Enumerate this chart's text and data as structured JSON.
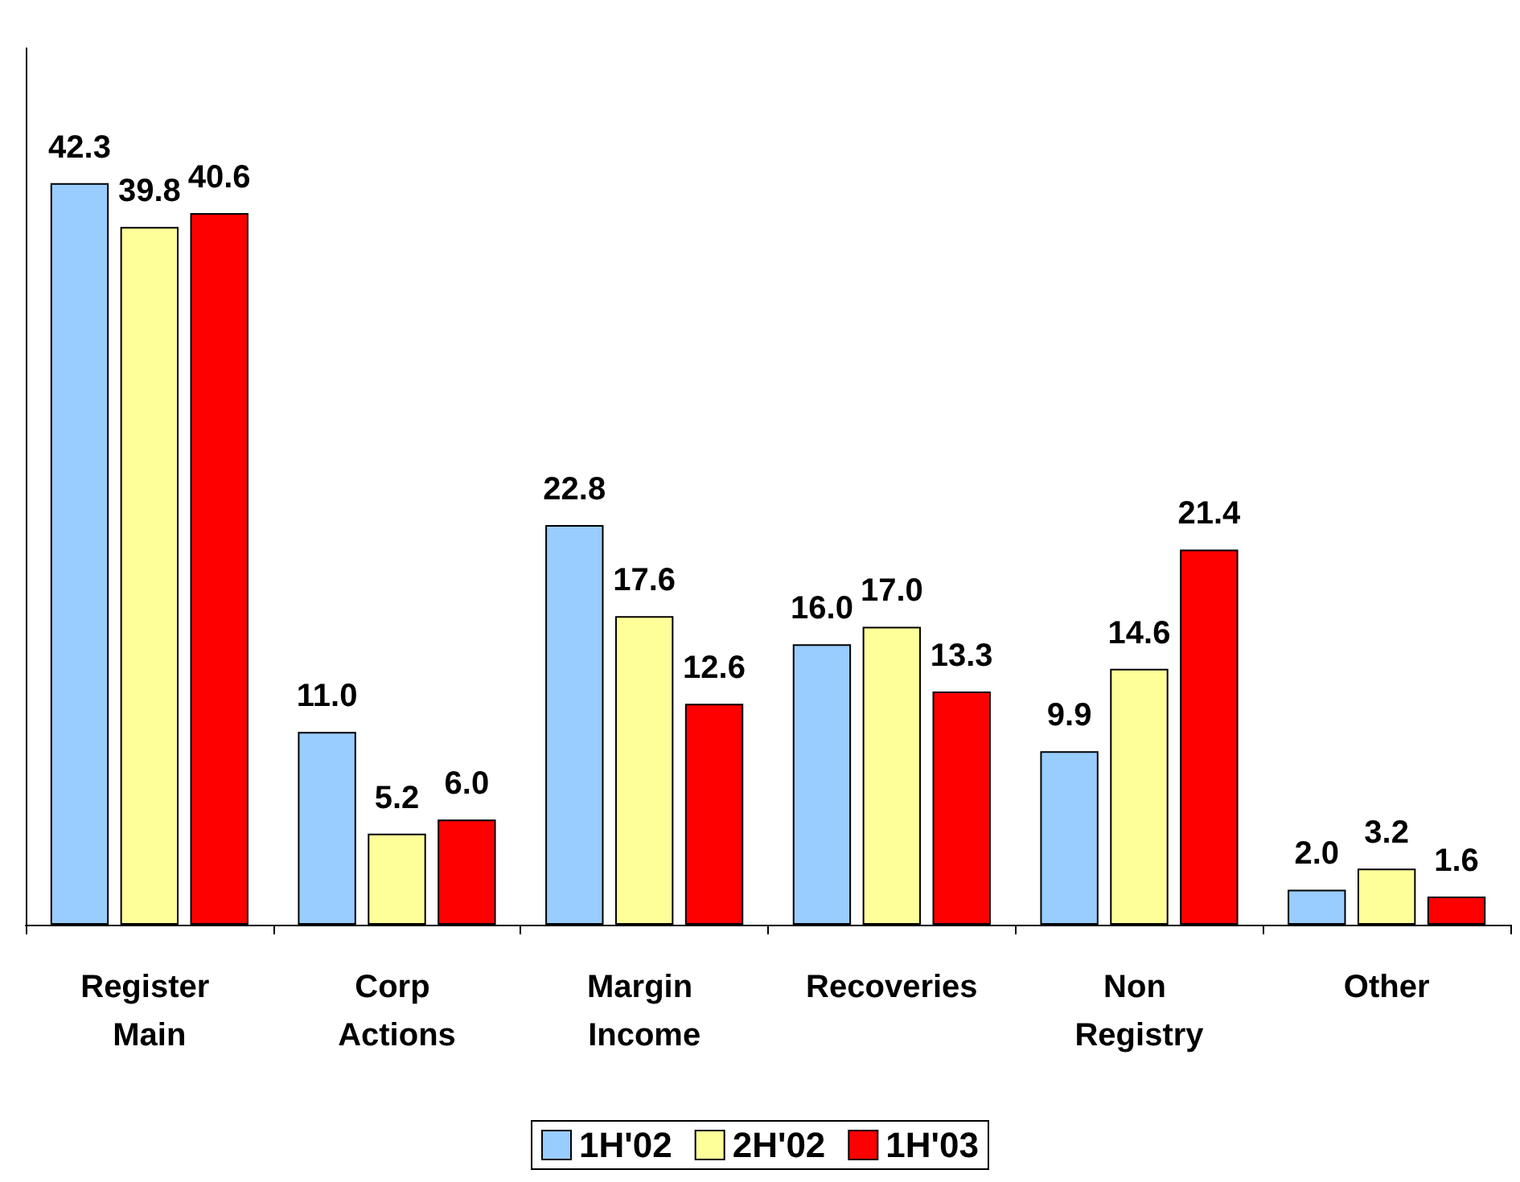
{
  "chart_data": {
    "type": "bar",
    "categories": [
      "Register Main",
      "Corp Actions",
      "Margin Income",
      "Recoveries",
      "Non Registry",
      "Other"
    ],
    "series": [
      {
        "name": "1H'02",
        "color": "#99ccff",
        "values": [
          42.3,
          11.0,
          22.8,
          16.0,
          9.9,
          2.0
        ],
        "value_labels": [
          "42.3",
          "11.0",
          "22.8",
          "16.0",
          "9.9",
          "2.0"
        ]
      },
      {
        "name": "2H'02",
        "color": "#ffff99",
        "values": [
          39.8,
          5.2,
          17.6,
          17.0,
          14.6,
          3.2
        ],
        "value_labels": [
          "39.8",
          "5.2",
          "17.6",
          "17.0",
          "14.6",
          "3.2"
        ]
      },
      {
        "name": "1H'03",
        "color": "#ff0000",
        "values": [
          40.6,
          6.0,
          12.6,
          13.3,
          21.4,
          1.6
        ],
        "value_labels": [
          "40.6",
          "6.0",
          "12.6",
          "13.3",
          "21.4",
          "1.6"
        ]
      }
    ],
    "grid": false,
    "legend": "bottom",
    "tick_labels": "x"
  }
}
